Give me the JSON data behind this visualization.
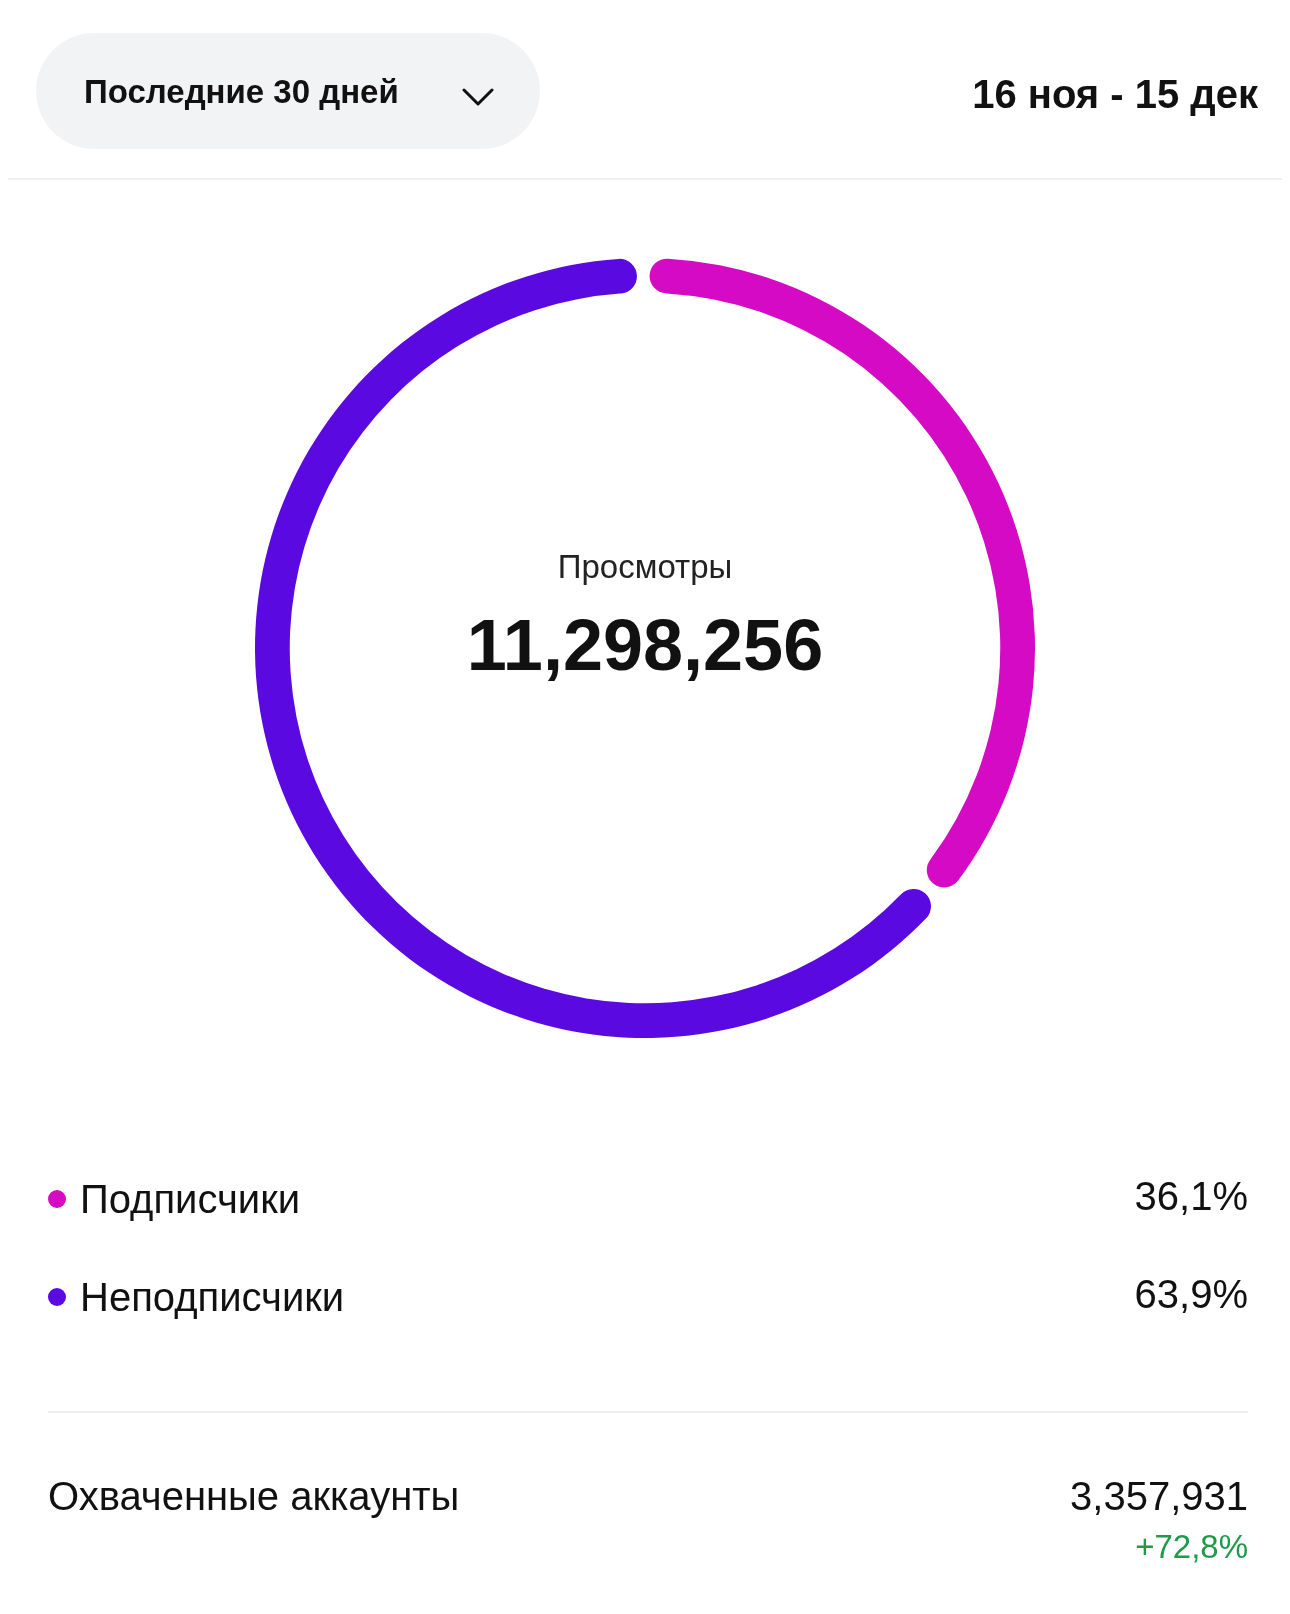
{
  "chart_data": {
    "type": "donut",
    "title": "Просмотры",
    "subtitle": "11,298,256",
    "categories": [
      "Подписчики",
      "Неподписчики"
    ],
    "values": [
      36.1,
      63.9
    ],
    "colors": [
      "#d40ac4",
      "#5a0ae0"
    ],
    "value_labels": [
      "36,1%",
      "63,9%"
    ],
    "legend": "bottom",
    "annotations": [
      "Последние 30 дней",
      "16 ноя - 15 дек",
      "Охваченные аккаунты",
      "3,357,931",
      "+72,8%"
    ]
  }
}
